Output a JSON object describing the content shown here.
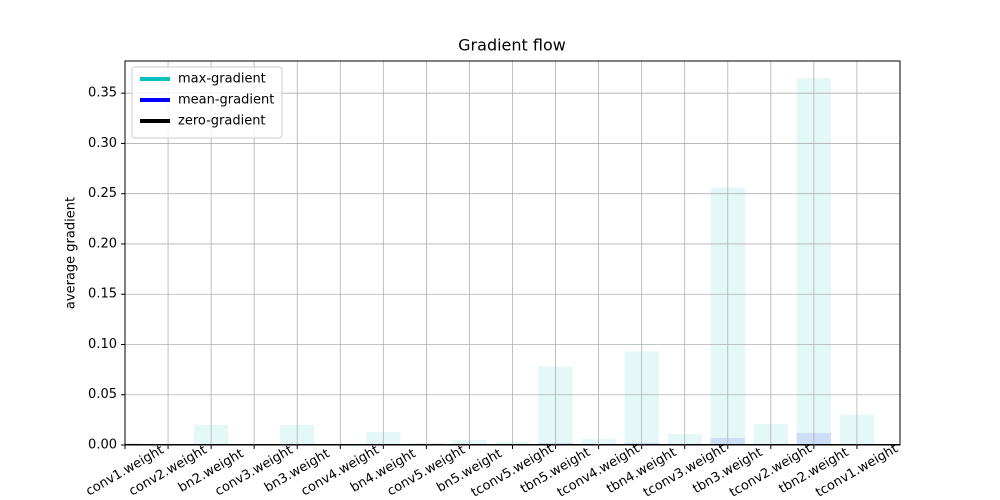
{
  "chart_data": {
    "type": "bar",
    "title": "Gradient flow",
    "ylabel": "average gradient",
    "categories": [
      "conv1.weight",
      "conv2.weight",
      "bn2.weight",
      "conv3.weight",
      "bn3.weight",
      "conv4.weight",
      "bn4.weight",
      "conv5.weight",
      "bn5.weight",
      "tconv5.weight",
      "tbn5.weight",
      "tconv4.weight",
      "tbn4.weight",
      "tconv3.weight",
      "tbn3.weight",
      "tconv2.weight",
      "tbn2.weight",
      "tconv1.weight"
    ],
    "series": [
      {
        "name": "max-gradient",
        "color": "#00bfbf",
        "values": [
          0.002,
          0.0,
          0.02,
          0.0,
          0.02,
          0.0,
          0.013,
          0.002,
          0.005,
          0.003,
          0.078,
          0.006,
          0.093,
          0.011,
          0.256,
          0.021,
          0.365,
          0.03
        ]
      },
      {
        "name": "mean-gradient",
        "color": "#0000ff",
        "values": [
          0.0002,
          0.0,
          0.001,
          0.0,
          0.001,
          0.0,
          0.001,
          0.0002,
          0.0005,
          0.0003,
          0.002,
          0.0005,
          0.002,
          0.001,
          0.007,
          0.001,
          0.012,
          0.001
        ]
      }
    ],
    "zero_line": {
      "name": "zero-gradient",
      "color": "#000000",
      "value": 0
    },
    "xlim": [
      0,
      18
    ],
    "ylim": [
      0,
      0.382
    ],
    "yticks": [
      {
        "value": 0,
        "label": "0.00"
      },
      0.05,
      {
        "value": 0.1,
        "label": "0.10"
      },
      0.15,
      {
        "value": 0.2,
        "label": "0.20"
      },
      0.25,
      {
        "value": 0.3,
        "label": "0.30"
      },
      0.35
    ],
    "grid": true,
    "legend": "upper left"
  }
}
